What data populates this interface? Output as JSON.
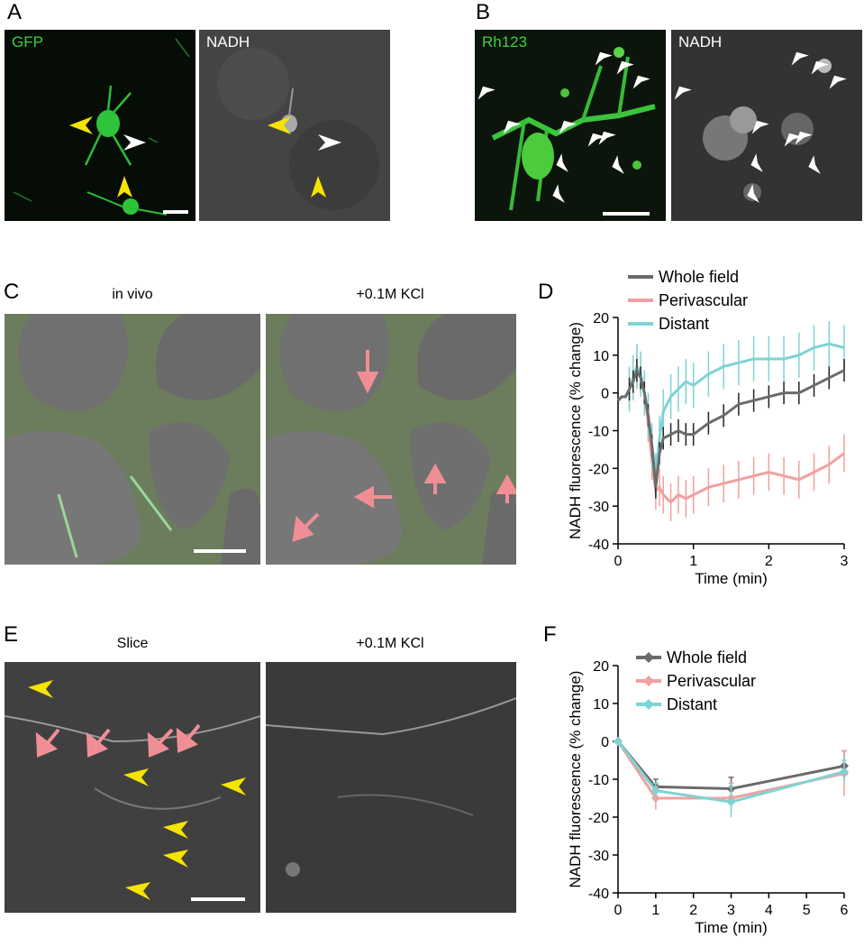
{
  "panels": {
    "A": {
      "letter": "A",
      "left_label": "GFP",
      "right_label": "NADH"
    },
    "B": {
      "letter": "B",
      "left_label": "Rh123",
      "right_label": "NADH"
    },
    "C": {
      "letter": "C",
      "left_caption": "in vivo",
      "right_caption": "+0.1M KCl"
    },
    "D": {
      "letter": "D"
    },
    "E": {
      "letter": "E",
      "left_caption": "Slice",
      "right_caption": "+0.1M KCl"
    },
    "F": {
      "letter": "F"
    }
  },
  "colors": {
    "whole": "#6b6b6b",
    "peri": "#f2a0a0",
    "distant": "#7fd3d3",
    "yellow": "#f5e400",
    "pink": "#ef8f95",
    "green": "#53b043"
  },
  "chart_data": [
    {
      "id": "D",
      "type": "line",
      "xlabel": "Time (min)",
      "ylabel": "NADH fluorescence (% change)",
      "xlim": [
        0,
        3
      ],
      "ylim": [
        -40,
        20
      ],
      "xticks": [
        0,
        1,
        2,
        3
      ],
      "yticks": [
        20,
        10,
        0,
        -10,
        -20,
        -30,
        -40
      ],
      "legend": [
        "Whole field",
        "Perivascular",
        "Distant"
      ],
      "series": [
        {
          "name": "Whole field",
          "x": [
            0,
            0.05,
            0.1,
            0.15,
            0.2,
            0.25,
            0.3,
            0.35,
            0.4,
            0.45,
            0.5,
            0.55,
            0.6,
            0.7,
            0.8,
            0.9,
            1.0,
            1.2,
            1.4,
            1.6,
            1.8,
            2.0,
            2.2,
            2.4,
            2.6,
            2.8,
            3.0
          ],
          "y": [
            -2,
            -1,
            -1,
            1,
            3,
            6,
            4,
            0,
            -6,
            -14,
            -25,
            -16,
            -12,
            -11,
            -10,
            -11,
            -11,
            -8,
            -6,
            -3,
            -2,
            -1,
            0,
            0,
            2,
            4,
            6
          ]
        },
        {
          "name": "Perivascular",
          "x": [
            0,
            0.05,
            0.1,
            0.15,
            0.2,
            0.25,
            0.3,
            0.35,
            0.4,
            0.45,
            0.5,
            0.55,
            0.6,
            0.7,
            0.8,
            0.9,
            1.0,
            1.2,
            1.4,
            1.6,
            1.8,
            2.0,
            2.2,
            2.4,
            2.6,
            2.8,
            3.0
          ],
          "y": [
            -2,
            -1,
            -1,
            1,
            4,
            7,
            5,
            0,
            -8,
            -18,
            -26,
            -25,
            -27,
            -29,
            -27,
            -28,
            -27,
            -25,
            -24,
            -23,
            -22,
            -21,
            -22,
            -23,
            -21,
            -19,
            -16
          ]
        },
        {
          "name": "Distant",
          "x": [
            0,
            0.05,
            0.1,
            0.15,
            0.2,
            0.25,
            0.3,
            0.35,
            0.4,
            0.45,
            0.5,
            0.55,
            0.6,
            0.7,
            0.8,
            0.9,
            1.0,
            1.2,
            1.4,
            1.6,
            1.8,
            2.0,
            2.2,
            2.4,
            2.6,
            2.8,
            3.0
          ],
          "y": [
            -2,
            -1,
            -1,
            1,
            4,
            7,
            5,
            0,
            -6,
            -14,
            -22,
            -12,
            -5,
            -1,
            1,
            3,
            2,
            5,
            7,
            8,
            9,
            9,
            9,
            10,
            12,
            13,
            12
          ]
        }
      ]
    },
    {
      "id": "F",
      "type": "line",
      "xlabel": "Time (min)",
      "ylabel": "NADH fluorescence (% change)",
      "xlim": [
        0,
        6
      ],
      "ylim": [
        -40,
        20
      ],
      "xticks": [
        0,
        1,
        2,
        3,
        4,
        5,
        6
      ],
      "yticks": [
        20,
        10,
        0,
        -10,
        -20,
        -30,
        -40
      ],
      "legend": [
        "Whole field",
        "Perivascular",
        "Distant"
      ],
      "series": [
        {
          "name": "Whole field",
          "x": [
            0,
            1,
            3,
            6
          ],
          "y": [
            0,
            -12,
            -12.5,
            -6.5
          ],
          "err": [
            0,
            2,
            3,
            4
          ]
        },
        {
          "name": "Perivascular",
          "x": [
            0,
            1,
            3,
            6
          ],
          "y": [
            0,
            -15,
            -15,
            -8.5
          ],
          "err": [
            0,
            3,
            4,
            6
          ]
        },
        {
          "name": "Distant",
          "x": [
            0,
            1,
            3,
            6
          ],
          "y": [
            0,
            -13,
            -16,
            -8
          ],
          "err": [
            0,
            2,
            4,
            3
          ]
        }
      ]
    }
  ]
}
